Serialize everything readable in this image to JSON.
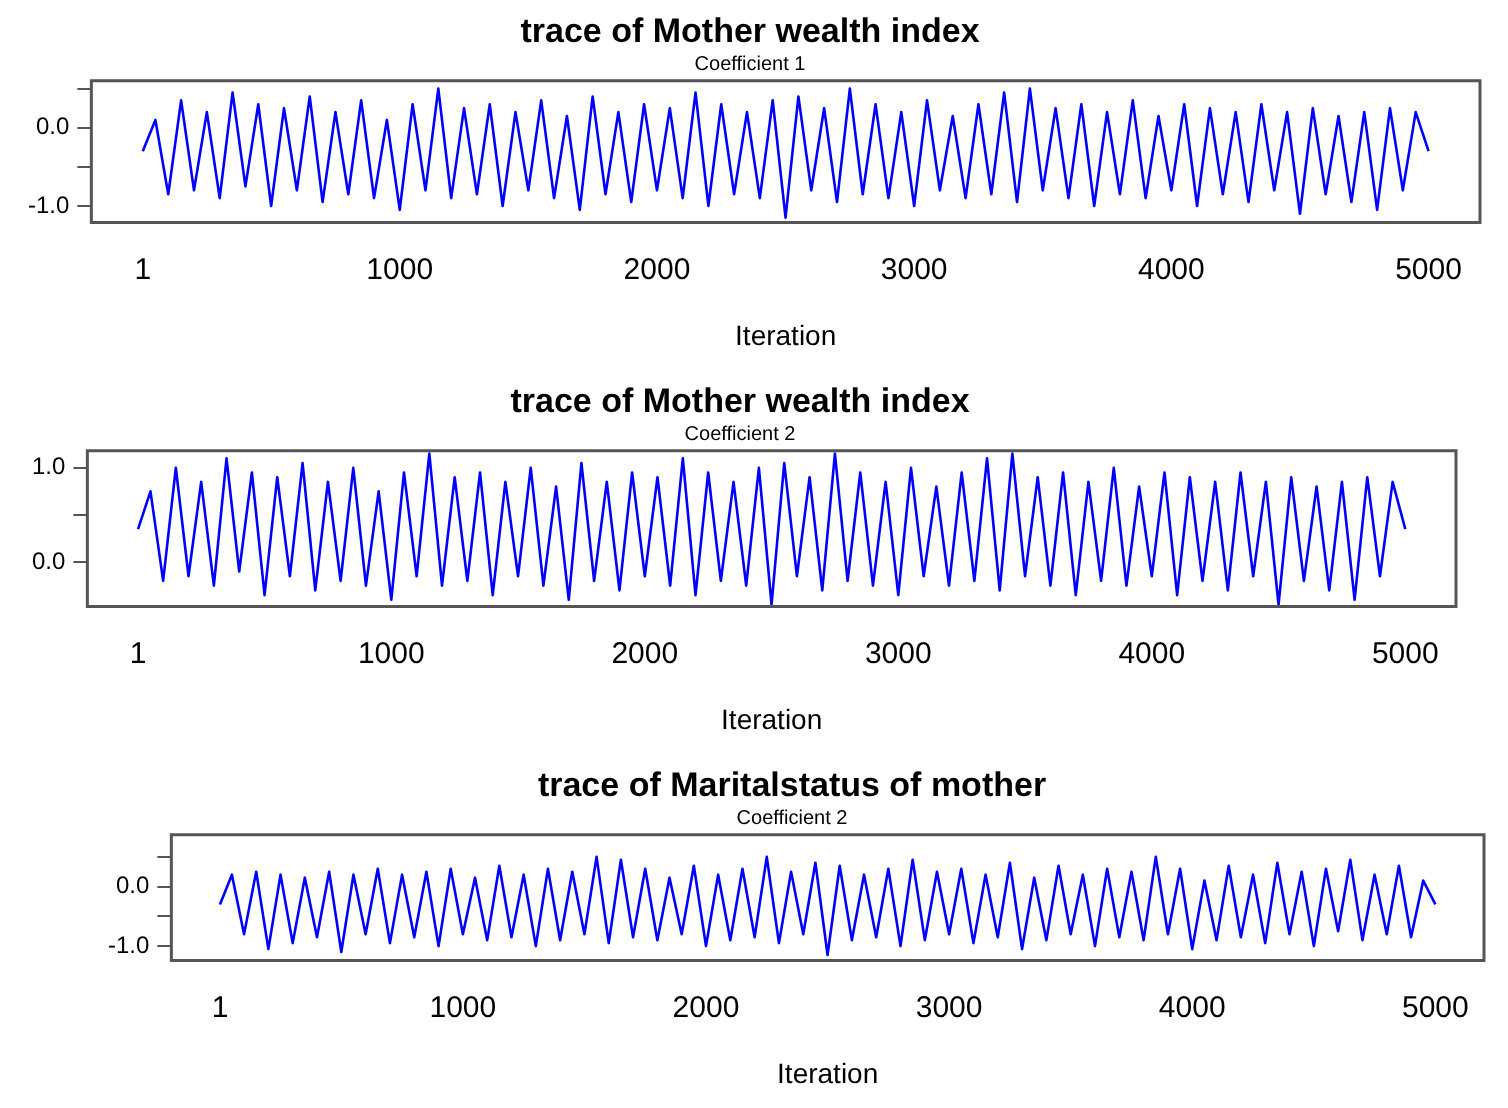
{
  "chart_data": [
    {
      "type": "line",
      "title": "trace of Mother wealth index",
      "subtitle": "Coefficient 1",
      "xlabel": "Iteration",
      "x": [
        1,
        50,
        100,
        150,
        200,
        250,
        300,
        350,
        400,
        450,
        500,
        550,
        600,
        650,
        700,
        750,
        800,
        850,
        900,
        950,
        1000,
        1050,
        1100,
        1150,
        1200,
        1250,
        1300,
        1350,
        1400,
        1450,
        1500,
        1550,
        1600,
        1650,
        1700,
        1750,
        1800,
        1850,
        1900,
        1950,
        2000,
        2050,
        2100,
        2150,
        2200,
        2250,
        2300,
        2350,
        2400,
        2450,
        2500,
        2550,
        2600,
        2650,
        2700,
        2750,
        2800,
        2850,
        2900,
        2950,
        3000,
        3050,
        3100,
        3150,
        3200,
        3250,
        3300,
        3350,
        3400,
        3450,
        3500,
        3550,
        3600,
        3650,
        3700,
        3750,
        3800,
        3850,
        3900,
        3950,
        4000,
        4050,
        4100,
        4150,
        4200,
        4250,
        4300,
        4350,
        4400,
        4450,
        4500,
        4550,
        4600,
        4650,
        4700,
        4750,
        4800,
        4850,
        4900,
        4950,
        5000
      ],
      "xlim": [
        -199,
        5200
      ],
      "xticks": [
        1,
        1000,
        2000,
        3000,
        4000,
        5000
      ],
      "ylim": [
        -1.21,
        0.6
      ],
      "yticks": [
        {
          "value": 0.5,
          "label": null
        },
        {
          "value": 0,
          "label": "0.0"
        },
        {
          "value": -0.5,
          "label": null
        },
        {
          "value": -1,
          "label": "-1.0"
        }
      ],
      "grid": false,
      "legend": false,
      "marker": "none",
      "line_style": "solid",
      "series": [
        {
          "color": "#0000ff",
          "values": [
            -0.3,
            0.1,
            -0.85,
            0.35,
            -0.8,
            0.2,
            -0.9,
            0.45,
            -0.75,
            0.3,
            -1.0,
            0.25,
            -0.8,
            0.4,
            -0.95,
            0.2,
            -0.85,
            0.35,
            -0.9,
            0.1,
            -1.05,
            0.3,
            -0.8,
            0.5,
            -0.9,
            0.25,
            -0.85,
            0.3,
            -1.0,
            0.2,
            -0.8,
            0.35,
            -0.9,
            0.15,
            -1.05,
            0.4,
            -0.85,
            0.2,
            -0.95,
            0.3,
            -0.8,
            0.25,
            -0.9,
            0.45,
            -1.0,
            0.3,
            -0.85,
            0.2,
            -0.9,
            0.35,
            -1.15,
            0.4,
            -0.8,
            0.25,
            -0.95,
            0.5,
            -0.85,
            0.3,
            -0.9,
            0.2,
            -1.0,
            0.35,
            -0.8,
            0.15,
            -0.9,
            0.3,
            -0.85,
            0.45,
            -0.95,
            0.5,
            -0.8,
            0.25,
            -0.9,
            0.3,
            -1.0,
            0.2,
            -0.85,
            0.35,
            -0.9,
            0.15,
            -0.8,
            0.3,
            -1.0,
            0.25,
            -0.85,
            0.2,
            -0.95,
            0.3,
            -0.8,
            0.2,
            -1.1,
            0.25,
            -0.85,
            0.15,
            -0.95,
            0.2,
            -1.05,
            0.25,
            -0.8,
            0.2,
            -0.3
          ]
        }
      ]
    },
    {
      "type": "line",
      "title": "trace of Mother wealth index",
      "subtitle": "Coefficient 2",
      "xlabel": "Iteration",
      "x": [
        1,
        50,
        100,
        150,
        200,
        250,
        300,
        350,
        400,
        450,
        500,
        550,
        600,
        650,
        700,
        750,
        800,
        850,
        900,
        950,
        1000,
        1050,
        1100,
        1150,
        1200,
        1250,
        1300,
        1350,
        1400,
        1450,
        1500,
        1550,
        1600,
        1650,
        1700,
        1750,
        1800,
        1850,
        1900,
        1950,
        2000,
        2050,
        2100,
        2150,
        2200,
        2250,
        2300,
        2350,
        2400,
        2450,
        2500,
        2550,
        2600,
        2650,
        2700,
        2750,
        2800,
        2850,
        2900,
        2950,
        3000,
        3050,
        3100,
        3150,
        3200,
        3250,
        3300,
        3350,
        3400,
        3450,
        3500,
        3550,
        3600,
        3650,
        3700,
        3750,
        3800,
        3850,
        3900,
        3950,
        4000,
        4050,
        4100,
        4150,
        4200,
        4250,
        4300,
        4350,
        4400,
        4450,
        4500,
        4550,
        4600,
        4650,
        4700,
        4750,
        4800,
        4850,
        4900,
        4950,
        5000
      ],
      "xlim": [
        -199,
        5200
      ],
      "xticks": [
        1,
        1000,
        2000,
        3000,
        4000,
        5000
      ],
      "ylim": [
        -0.47,
        1.18
      ],
      "yticks": [
        {
          "value": 0,
          "label": "0.0"
        },
        {
          "value": 0.5,
          "label": null
        },
        {
          "value": 1,
          "label": "1.0"
        }
      ],
      "grid": false,
      "legend": false,
      "marker": "none",
      "line_style": "solid",
      "series": [
        {
          "color": "#0000ff",
          "values": [
            0.35,
            0.75,
            -0.2,
            1.0,
            -0.15,
            0.85,
            -0.25,
            1.1,
            -0.1,
            0.95,
            -0.35,
            0.9,
            -0.15,
            1.05,
            -0.3,
            0.85,
            -0.2,
            1.0,
            -0.25,
            0.75,
            -0.4,
            0.95,
            -0.15,
            1.15,
            -0.25,
            0.9,
            -0.2,
            0.95,
            -0.35,
            0.85,
            -0.15,
            1.0,
            -0.25,
            0.8,
            -0.4,
            1.05,
            -0.2,
            0.85,
            -0.3,
            0.95,
            -0.15,
            0.9,
            -0.25,
            1.1,
            -0.35,
            0.95,
            -0.2,
            0.85,
            -0.25,
            1.0,
            -0.45,
            1.05,
            -0.15,
            0.9,
            -0.3,
            1.15,
            -0.2,
            0.95,
            -0.25,
            0.85,
            -0.35,
            1.0,
            -0.15,
            0.8,
            -0.25,
            0.95,
            -0.2,
            1.1,
            -0.3,
            1.15,
            -0.15,
            0.9,
            -0.25,
            0.95,
            -0.35,
            0.85,
            -0.2,
            1.0,
            -0.25,
            0.8,
            -0.15,
            0.95,
            -0.35,
            0.9,
            -0.2,
            0.85,
            -0.3,
            0.95,
            -0.15,
            0.85,
            -0.45,
            0.9,
            -0.2,
            0.8,
            -0.3,
            0.85,
            -0.4,
            0.9,
            -0.15,
            0.85,
            0.35
          ]
        }
      ]
    },
    {
      "type": "line",
      "title": "trace of Maritalstatus of mother",
      "subtitle": "Coefficient 2",
      "xlabel": "Iteration",
      "x": [
        1,
        50,
        100,
        150,
        200,
        250,
        300,
        350,
        400,
        450,
        500,
        550,
        600,
        650,
        700,
        750,
        800,
        850,
        900,
        950,
        1000,
        1050,
        1100,
        1150,
        1200,
        1250,
        1300,
        1350,
        1400,
        1450,
        1500,
        1550,
        1600,
        1650,
        1700,
        1750,
        1800,
        1850,
        1900,
        1950,
        2000,
        2050,
        2100,
        2150,
        2200,
        2250,
        2300,
        2350,
        2400,
        2450,
        2500,
        2550,
        2600,
        2650,
        2700,
        2750,
        2800,
        2850,
        2900,
        2950,
        3000,
        3050,
        3100,
        3150,
        3200,
        3250,
        3300,
        3350,
        3400,
        3450,
        3500,
        3550,
        3600,
        3650,
        3700,
        3750,
        3800,
        3850,
        3900,
        3950,
        4000,
        4050,
        4100,
        4150,
        4200,
        4250,
        4300,
        4350,
        4400,
        4450,
        4500,
        4550,
        4600,
        4650,
        4700,
        4750,
        4800,
        4850,
        4900,
        4950,
        5000
      ],
      "xlim": [
        -199,
        5200
      ],
      "xticks": [
        1,
        1000,
        2000,
        3000,
        4000,
        5000
      ],
      "ylim": [
        -1.24,
        0.87
      ],
      "yticks": [
        {
          "value": -1,
          "label": "-1.0"
        },
        {
          "value": -0.5,
          "label": null
        },
        {
          "value": 0,
          "label": "0.0"
        },
        {
          "value": 0.5,
          "label": null
        }
      ],
      "grid": false,
      "legend": false,
      "marker": "none",
      "line_style": "solid",
      "series": [
        {
          "color": "#0000ff",
          "values": [
            -0.3,
            0.2,
            -0.8,
            0.25,
            -1.05,
            0.2,
            -0.95,
            0.15,
            -0.85,
            0.25,
            -1.1,
            0.2,
            -0.8,
            0.3,
            -0.95,
            0.2,
            -0.85,
            0.25,
            -1.0,
            0.3,
            -0.8,
            0.15,
            -0.9,
            0.35,
            -0.85,
            0.2,
            -1.0,
            0.3,
            -0.9,
            0.25,
            -0.8,
            0.5,
            -0.95,
            0.45,
            -0.85,
            0.3,
            -0.9,
            0.15,
            -0.8,
            0.35,
            -1.0,
            0.2,
            -0.9,
            0.3,
            -0.85,
            0.5,
            -0.95,
            0.25,
            -0.8,
            0.4,
            -1.15,
            0.35,
            -0.9,
            0.2,
            -0.85,
            0.3,
            -1.0,
            0.45,
            -0.9,
            0.25,
            -0.8,
            0.3,
            -0.95,
            0.2,
            -0.85,
            0.4,
            -1.05,
            0.15,
            -0.9,
            0.35,
            -0.8,
            0.2,
            -1.0,
            0.3,
            -0.85,
            0.25,
            -0.9,
            0.5,
            -0.8,
            0.3,
            -1.05,
            0.1,
            -0.9,
            0.35,
            -0.85,
            0.2,
            -0.95,
            0.4,
            -0.8,
            0.25,
            -1.0,
            0.3,
            -0.75,
            0.45,
            -0.9,
            0.2,
            -0.8,
            0.35,
            -0.85,
            0.1,
            -0.3
          ]
        }
      ]
    }
  ]
}
